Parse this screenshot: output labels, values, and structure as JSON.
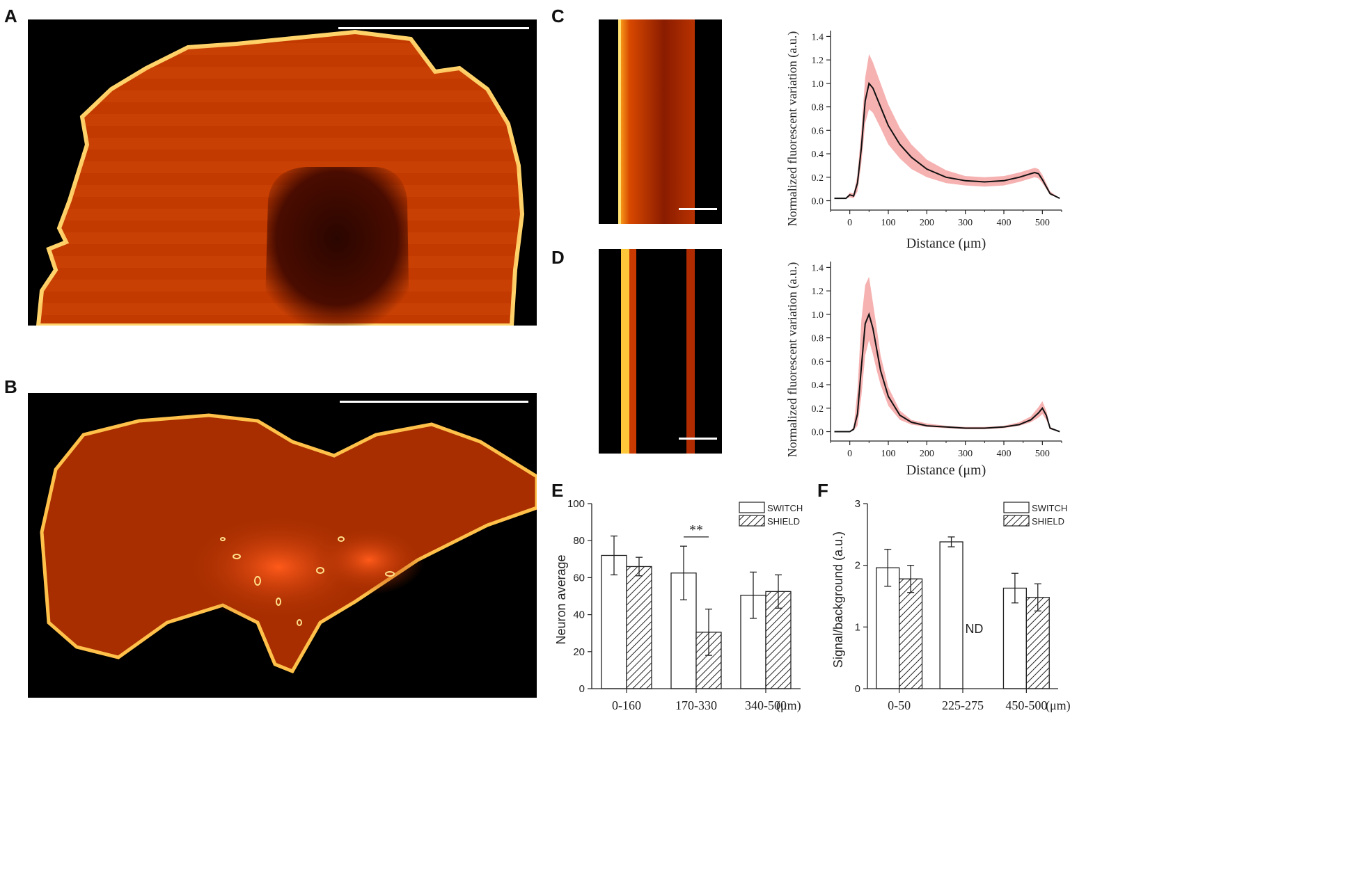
{
  "panels": {
    "A": {
      "letter": "A"
    },
    "B": {
      "letter": "B"
    },
    "C": {
      "letter": "C"
    },
    "D": {
      "letter": "D"
    },
    "E": {
      "letter": "E"
    },
    "F": {
      "letter": "F"
    }
  },
  "colors": {
    "tissue_base": "#c23a00",
    "tissue_edge": "#ffd36a",
    "tissue_dark": "#3a0800",
    "band_fill": "#f4a3a3",
    "line": "#111111"
  },
  "chart_data": [
    {
      "id": "C",
      "type": "line",
      "xlabel": "Distance (μm)",
      "ylabel": "Normalized fluorescent variation (a.u.)",
      "xlim": [
        -50,
        550
      ],
      "ylim": [
        -0.08,
        1.45
      ],
      "xticks": [
        "0",
        "100",
        "200",
        "300",
        "400",
        "500"
      ],
      "yticks": [
        "0.0",
        "0.2",
        "0.4",
        "0.6",
        "0.8",
        "1.0",
        "1.2",
        "1.4"
      ],
      "x": [
        -40,
        -10,
        0,
        10,
        20,
        30,
        40,
        50,
        60,
        80,
        100,
        130,
        160,
        200,
        250,
        300,
        350,
        400,
        440,
        470,
        480,
        490,
        500,
        520,
        545
      ],
      "y": [
        0.02,
        0.02,
        0.05,
        0.04,
        0.15,
        0.45,
        0.85,
        1.0,
        0.96,
        0.8,
        0.64,
        0.48,
        0.37,
        0.27,
        0.2,
        0.17,
        0.16,
        0.17,
        0.2,
        0.23,
        0.24,
        0.23,
        0.18,
        0.06,
        0.02
      ],
      "upper": [
        0.02,
        0.02,
        0.07,
        0.06,
        0.22,
        0.6,
        1.05,
        1.25,
        1.18,
        1.0,
        0.82,
        0.62,
        0.48,
        0.35,
        0.26,
        0.21,
        0.2,
        0.21,
        0.24,
        0.27,
        0.28,
        0.27,
        0.22,
        0.08,
        0.02
      ],
      "lower": [
        0.02,
        0.02,
        0.03,
        0.02,
        0.08,
        0.32,
        0.66,
        0.78,
        0.75,
        0.62,
        0.48,
        0.36,
        0.27,
        0.2,
        0.15,
        0.13,
        0.12,
        0.13,
        0.16,
        0.19,
        0.2,
        0.19,
        0.15,
        0.05,
        0.02
      ]
    },
    {
      "id": "D",
      "type": "line",
      "xlabel": "Distance (μm)",
      "ylabel": "Normalized fluorescent variation (a.u.)",
      "xlim": [
        -50,
        550
      ],
      "ylim": [
        -0.08,
        1.45
      ],
      "xticks": [
        "0",
        "100",
        "200",
        "300",
        "400",
        "500"
      ],
      "yticks": [
        "0.0",
        "0.2",
        "0.4",
        "0.6",
        "0.8",
        "1.0",
        "1.2",
        "1.4"
      ],
      "x": [
        -40,
        0,
        10,
        20,
        30,
        40,
        50,
        60,
        70,
        80,
        100,
        130,
        160,
        200,
        250,
        300,
        350,
        400,
        440,
        470,
        490,
        500,
        510,
        520,
        545
      ],
      "y": [
        0.0,
        0.0,
        0.02,
        0.15,
        0.55,
        0.92,
        1.0,
        0.88,
        0.7,
        0.52,
        0.3,
        0.14,
        0.08,
        0.05,
        0.04,
        0.03,
        0.03,
        0.04,
        0.06,
        0.1,
        0.16,
        0.2,
        0.14,
        0.03,
        0.0
      ],
      "upper": [
        0.0,
        0.0,
        0.04,
        0.35,
        0.95,
        1.25,
        1.32,
        1.1,
        0.88,
        0.65,
        0.38,
        0.18,
        0.1,
        0.07,
        0.05,
        0.04,
        0.04,
        0.05,
        0.08,
        0.13,
        0.21,
        0.26,
        0.18,
        0.04,
        0.0
      ],
      "lower": [
        0.0,
        0.0,
        0.01,
        0.05,
        0.3,
        0.65,
        0.78,
        0.66,
        0.52,
        0.4,
        0.22,
        0.1,
        0.06,
        0.04,
        0.03,
        0.02,
        0.02,
        0.03,
        0.05,
        0.08,
        0.12,
        0.15,
        0.1,
        0.02,
        0.0
      ]
    },
    {
      "id": "E",
      "type": "bar",
      "ylabel": "Neuron average",
      "unit": "(μm)",
      "categories": [
        "0-160",
        "170-330",
        "340-500"
      ],
      "ylim": [
        0,
        100
      ],
      "yticks": [
        "0",
        "20",
        "40",
        "60",
        "80",
        "100"
      ],
      "series": [
        {
          "name": "SWITCH",
          "values": [
            72,
            62.5,
            50.5
          ],
          "errors": [
            10.5,
            14.5,
            12.5
          ]
        },
        {
          "name": "SHIELD",
          "values": [
            66,
            30.5,
            52.5
          ],
          "errors": [
            5,
            12.5,
            9
          ]
        }
      ],
      "annotation": "**"
    },
    {
      "id": "F",
      "type": "bar",
      "ylabel": "Signal/background (a.u.)",
      "unit": "(μm)",
      "categories": [
        "0-50",
        "225-275",
        "450-500"
      ],
      "ylim": [
        0,
        3
      ],
      "yticks": [
        "0",
        "1",
        "2",
        "3"
      ],
      "series": [
        {
          "name": "SWITCH",
          "values": [
            1.96,
            2.38,
            1.63
          ],
          "errors": [
            0.3,
            0.08,
            0.24
          ]
        },
        {
          "name": "SHIELD",
          "values": [
            1.78,
            null,
            1.48
          ],
          "errors": [
            0.22,
            null,
            0.22
          ]
        }
      ],
      "annotation": "ND"
    }
  ]
}
